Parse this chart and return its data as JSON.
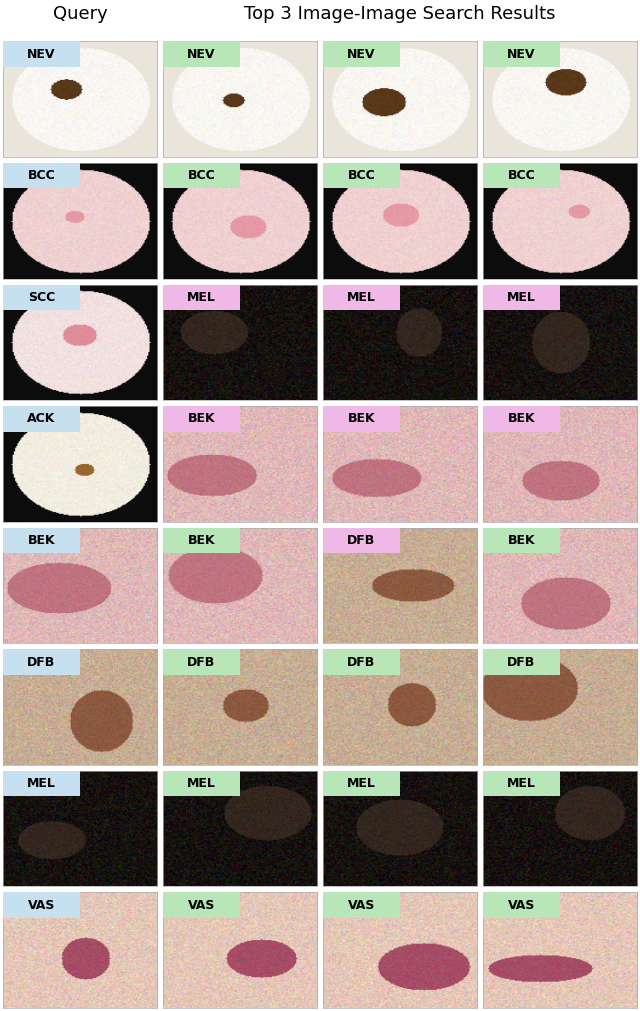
{
  "title_query": "Query",
  "title_results": "Top 3 Image-Image Search Results",
  "query_labels": [
    "NEV",
    "BCC",
    "SCC",
    "ACK",
    "BEK",
    "DFB",
    "MEL",
    "VAS"
  ],
  "result_labels": [
    [
      "NEV",
      "NEV",
      "NEV"
    ],
    [
      "BCC",
      "BCC",
      "BCC"
    ],
    [
      "MEL",
      "MEL",
      "MEL"
    ],
    [
      "BEK",
      "BEK",
      "BEK"
    ],
    [
      "BEK",
      "DFB",
      "BEK"
    ],
    [
      "DFB",
      "DFB",
      "DFB"
    ],
    [
      "MEL",
      "MEL",
      "MEL"
    ],
    [
      "VAS",
      "VAS",
      "VAS"
    ]
  ],
  "query_label_color": [
    0.78,
    0.88,
    0.94
  ],
  "correct_label_color": [
    0.72,
    0.9,
    0.72
  ],
  "incorrect_label_color": [
    0.94,
    0.72,
    0.9
  ],
  "fig_bg": "#ffffff",
  "figsize": [
    6.4,
    10.11
  ],
  "dpi": 100,
  "title_fontsize": 13,
  "label_fontsize": 10,
  "n_rows": 8,
  "n_cols": 4,
  "query_correct": [
    [
      true,
      true,
      true
    ],
    [
      true,
      true,
      true
    ],
    [
      false,
      false,
      false
    ],
    [
      false,
      false,
      false
    ],
    [
      true,
      false,
      true
    ],
    [
      true,
      true,
      true
    ],
    [
      true,
      true,
      true
    ],
    [
      true,
      true,
      true
    ]
  ],
  "cell_image_colors": {
    "NEV": {
      "bg": [
        0.92,
        0.9,
        0.86
      ],
      "circle": [
        0.98,
        0.97,
        0.95
      ],
      "lesion": [
        0.35,
        0.22,
        0.1
      ],
      "border": [
        0.05,
        0.05,
        0.05
      ]
    },
    "BCC": {
      "bg": [
        0.05,
        0.05,
        0.05
      ],
      "circle": [
        0.94,
        0.82,
        0.82
      ],
      "lesion": [
        0.9,
        0.6,
        0.65
      ],
      "border": [
        0.05,
        0.05,
        0.05
      ]
    },
    "SCC": {
      "bg": [
        0.05,
        0.05,
        0.05
      ],
      "circle": [
        0.95,
        0.88,
        0.88
      ],
      "lesion": [
        0.88,
        0.55,
        0.6
      ],
      "border": [
        0.05,
        0.05,
        0.05
      ]
    },
    "ACK": {
      "bg": [
        0.05,
        0.05,
        0.05
      ],
      "circle": [
        0.95,
        0.93,
        0.88
      ],
      "lesion": [
        0.6,
        0.4,
        0.2
      ],
      "border": [
        0.05,
        0.05,
        0.05
      ]
    },
    "BEK": {
      "bg": [
        0.88,
        0.72,
        0.72
      ],
      "circle": null,
      "lesion": [
        0.75,
        0.45,
        0.5
      ],
      "border": null
    },
    "DFB": {
      "bg": [
        0.78,
        0.68,
        0.58
      ],
      "circle": null,
      "lesion": [
        0.55,
        0.35,
        0.25
      ],
      "border": null
    },
    "MEL": {
      "bg": [
        0.08,
        0.06,
        0.05
      ],
      "circle": null,
      "lesion": [
        0.2,
        0.15,
        0.12
      ],
      "border": null
    },
    "VAS": {
      "bg": [
        0.9,
        0.78,
        0.72
      ],
      "circle": null,
      "lesion": [
        0.65,
        0.3,
        0.4
      ],
      "border": null
    }
  }
}
